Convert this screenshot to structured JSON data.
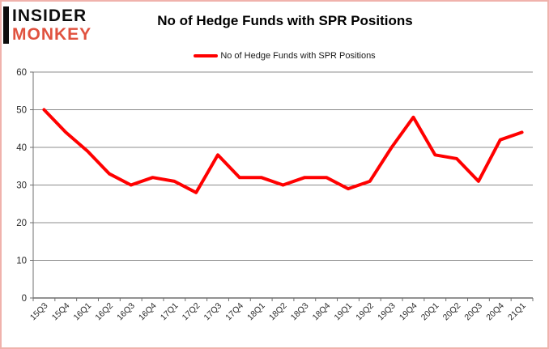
{
  "logo": {
    "line1": "INSIDER",
    "line2": "MONKEY",
    "accent_color": "#e0523f"
  },
  "header": {
    "title": "No of Hedge Funds with SPR Positions"
  },
  "legend": {
    "label": "No of Hedge Funds with SPR Positions"
  },
  "chart_data": {
    "type": "line",
    "title": "No of Hedge Funds with SPR Positions",
    "categories": [
      "15Q3",
      "15Q4",
      "16Q1",
      "16Q2",
      "16Q3",
      "16Q4",
      "17Q1",
      "17Q2",
      "17Q3",
      "17Q4",
      "18Q1",
      "18Q2",
      "18Q3",
      "18Q4",
      "19Q1",
      "19Q2",
      "19Q3",
      "19Q4",
      "20Q1",
      "20Q2",
      "20Q3",
      "20Q4",
      "21Q1"
    ],
    "series": [
      {
        "name": "No of Hedge Funds with SPR Positions",
        "values": [
          50,
          44,
          39,
          33,
          30,
          32,
          31,
          28,
          38,
          32,
          32,
          30,
          32,
          32,
          29,
          31,
          40,
          48,
          38,
          37,
          31,
          42,
          44
        ]
      }
    ],
    "xlabel": "",
    "ylabel": "",
    "ylim": [
      0,
      60
    ],
    "ytick_step": 10,
    "grid": true,
    "legend_position": "top",
    "line_color": "#ff0000"
  },
  "colors": {
    "line": "#ff0000",
    "gridline": "#8c8c8c",
    "axis": "#6f6f6f",
    "tick_label": "#2b2b2b",
    "page_border": "#f0b2ac"
  }
}
